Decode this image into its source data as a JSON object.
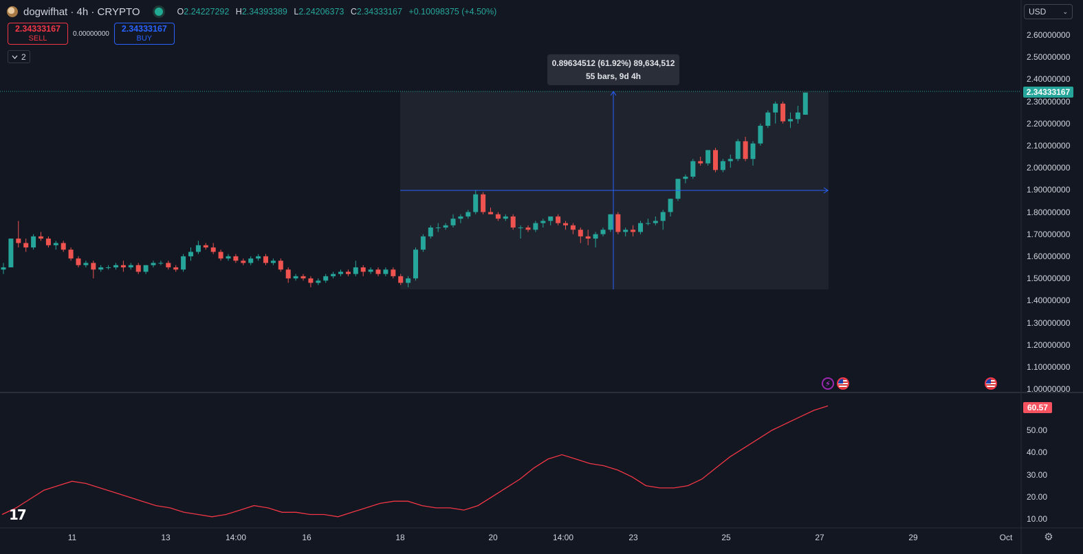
{
  "header": {
    "title": "dogwifhat · 4h · CRYPTO",
    "ohlc": {
      "open_label": "O",
      "open": "2.24227292",
      "high_label": "H",
      "high": "2.34393389",
      "low_label": "L",
      "low": "2.24206373",
      "close_label": "C",
      "close": "2.34333167",
      "change": "+0.10098375 (+4.50%)"
    }
  },
  "trade": {
    "sell_price": "2.34333167",
    "sell_label": "SELL",
    "spread": "0.00000000",
    "buy_price": "2.34333167",
    "buy_label": "BUY"
  },
  "indicators_collapse": {
    "count": "2"
  },
  "currency": {
    "selected": "USD"
  },
  "measure_tooltip": {
    "line1": "0.89634512 (61.92%) 89,634,512",
    "line2": "55 bars, 9d 4h"
  },
  "last_price_label": "2.34333167",
  "indicator_value_label": "60.57",
  "price_axis": [
    "2.60000000",
    "2.50000000",
    "2.40000000",
    "2.30000000",
    "2.20000000",
    "2.10000000",
    "2.00000000",
    "1.90000000",
    "1.80000000",
    "1.70000000",
    "1.60000000",
    "1.50000000",
    "1.40000000",
    "1.30000000",
    "1.20000000",
    "1.10000000",
    "1.00000000"
  ],
  "indicator_axis": [
    "50.00",
    "40.00",
    "30.00",
    "20.00",
    "10.00"
  ],
  "time_axis": [
    "11",
    "13",
    "14:00",
    "16",
    "18",
    "20",
    "14:00",
    "23",
    "25",
    "27",
    "29",
    "Oct"
  ],
  "events": [
    {
      "type": "flash-icon"
    },
    {
      "type": "us-flag-icon"
    },
    {
      "type": "us-flag-icon"
    }
  ],
  "colors": {
    "up": "#26a69a",
    "down": "#ef5350",
    "measure": "#2962ff",
    "indicator": "#f23645",
    "background": "#131722",
    "measure_fill": "#2a2e39"
  },
  "chart_data": {
    "type": "candlestick",
    "symbol": "dogwifhat",
    "interval": "4h",
    "ylim": [
      1.0,
      2.6
    ],
    "candles": [
      [
        1.54,
        1.57,
        1.52,
        1.55
      ],
      [
        1.55,
        1.68,
        1.55,
        1.68
      ],
      [
        1.68,
        1.76,
        1.64,
        1.66
      ],
      [
        1.66,
        1.68,
        1.62,
        1.64
      ],
      [
        1.64,
        1.7,
        1.63,
        1.69
      ],
      [
        1.69,
        1.71,
        1.67,
        1.68
      ],
      [
        1.68,
        1.69,
        1.64,
        1.65
      ],
      [
        1.65,
        1.67,
        1.63,
        1.66
      ],
      [
        1.66,
        1.67,
        1.62,
        1.63
      ],
      [
        1.63,
        1.64,
        1.58,
        1.59
      ],
      [
        1.59,
        1.6,
        1.55,
        1.56
      ],
      [
        1.56,
        1.58,
        1.55,
        1.57
      ],
      [
        1.57,
        1.58,
        1.5,
        1.54
      ],
      [
        1.54,
        1.56,
        1.53,
        1.55
      ],
      [
        1.55,
        1.56,
        1.54,
        1.55
      ],
      [
        1.55,
        1.57,
        1.54,
        1.56
      ],
      [
        1.56,
        1.58,
        1.53,
        1.55
      ],
      [
        1.55,
        1.57,
        1.54,
        1.56
      ],
      [
        1.56,
        1.57,
        1.52,
        1.53
      ],
      [
        1.53,
        1.56,
        1.52,
        1.56
      ],
      [
        1.56,
        1.58,
        1.55,
        1.57
      ],
      [
        1.57,
        1.58,
        1.56,
        1.57
      ],
      [
        1.57,
        1.58,
        1.54,
        1.55
      ],
      [
        1.55,
        1.56,
        1.53,
        1.54
      ],
      [
        1.54,
        1.61,
        1.53,
        1.6
      ],
      [
        1.6,
        1.64,
        1.58,
        1.62
      ],
      [
        1.62,
        1.67,
        1.61,
        1.65
      ],
      [
        1.65,
        1.66,
        1.63,
        1.64
      ],
      [
        1.64,
        1.66,
        1.61,
        1.62
      ],
      [
        1.62,
        1.63,
        1.58,
        1.59
      ],
      [
        1.59,
        1.61,
        1.58,
        1.6
      ],
      [
        1.6,
        1.61,
        1.57,
        1.58
      ],
      [
        1.58,
        1.59,
        1.56,
        1.57
      ],
      [
        1.57,
        1.6,
        1.56,
        1.59
      ],
      [
        1.59,
        1.61,
        1.58,
        1.6
      ],
      [
        1.6,
        1.61,
        1.56,
        1.57
      ],
      [
        1.57,
        1.59,
        1.56,
        1.58
      ],
      [
        1.58,
        1.59,
        1.53,
        1.54
      ],
      [
        1.54,
        1.55,
        1.48,
        1.5
      ],
      [
        1.5,
        1.52,
        1.49,
        1.51
      ],
      [
        1.51,
        1.52,
        1.49,
        1.5
      ],
      [
        1.5,
        1.51,
        1.46,
        1.48
      ],
      [
        1.48,
        1.5,
        1.47,
        1.49
      ],
      [
        1.49,
        1.52,
        1.48,
        1.51
      ],
      [
        1.51,
        1.53,
        1.5,
        1.52
      ],
      [
        1.52,
        1.54,
        1.51,
        1.53
      ],
      [
        1.53,
        1.54,
        1.51,
        1.52
      ],
      [
        1.52,
        1.58,
        1.51,
        1.55
      ],
      [
        1.55,
        1.56,
        1.51,
        1.53
      ],
      [
        1.53,
        1.55,
        1.52,
        1.54
      ],
      [
        1.54,
        1.55,
        1.51,
        1.52
      ],
      [
        1.52,
        1.55,
        1.51,
        1.54
      ],
      [
        1.54,
        1.55,
        1.5,
        1.51
      ],
      [
        1.51,
        1.52,
        1.47,
        1.48
      ],
      [
        1.48,
        1.51,
        1.46,
        1.5
      ],
      [
        1.5,
        1.64,
        1.49,
        1.63
      ],
      [
        1.63,
        1.7,
        1.62,
        1.69
      ],
      [
        1.69,
        1.74,
        1.68,
        1.73
      ],
      [
        1.73,
        1.75,
        1.71,
        1.73
      ],
      [
        1.73,
        1.75,
        1.72,
        1.74
      ],
      [
        1.74,
        1.79,
        1.73,
        1.77
      ],
      [
        1.77,
        1.79,
        1.75,
        1.78
      ],
      [
        1.78,
        1.81,
        1.77,
        1.8
      ],
      [
        1.8,
        1.9,
        1.79,
        1.88
      ],
      [
        1.88,
        1.89,
        1.79,
        1.8
      ],
      [
        1.8,
        1.82,
        1.79,
        1.79
      ],
      [
        1.79,
        1.8,
        1.76,
        1.77
      ],
      [
        1.77,
        1.79,
        1.76,
        1.78
      ],
      [
        1.78,
        1.79,
        1.72,
        1.73
      ],
      [
        1.73,
        1.74,
        1.68,
        1.73
      ],
      [
        1.73,
        1.74,
        1.71,
        1.72
      ],
      [
        1.72,
        1.76,
        1.71,
        1.75
      ],
      [
        1.75,
        1.77,
        1.73,
        1.76
      ],
      [
        1.76,
        1.78,
        1.74,
        1.78
      ],
      [
        1.78,
        1.79,
        1.74,
        1.75
      ],
      [
        1.75,
        1.76,
        1.72,
        1.74
      ],
      [
        1.74,
        1.75,
        1.7,
        1.72
      ],
      [
        1.72,
        1.73,
        1.66,
        1.69
      ],
      [
        1.69,
        1.72,
        1.65,
        1.68
      ],
      [
        1.68,
        1.71,
        1.64,
        1.7
      ],
      [
        1.7,
        1.73,
        1.69,
        1.72
      ],
      [
        1.72,
        1.79,
        1.71,
        1.79
      ],
      [
        1.79,
        1.8,
        1.7,
        1.71
      ],
      [
        1.71,
        1.73,
        1.69,
        1.72
      ],
      [
        1.72,
        1.74,
        1.69,
        1.71
      ],
      [
        1.71,
        1.76,
        1.7,
        1.75
      ],
      [
        1.75,
        1.77,
        1.74,
        1.75
      ],
      [
        1.75,
        1.78,
        1.74,
        1.76
      ],
      [
        1.76,
        1.81,
        1.72,
        1.8
      ],
      [
        1.8,
        1.86,
        1.78,
        1.86
      ],
      [
        1.86,
        1.95,
        1.85,
        1.95
      ],
      [
        1.95,
        1.97,
        1.93,
        1.96
      ],
      [
        1.96,
        2.04,
        1.95,
        2.03
      ],
      [
        2.03,
        2.05,
        2.01,
        2.02
      ],
      [
        2.02,
        2.08,
        2.01,
        2.08
      ],
      [
        2.08,
        2.09,
        1.98,
        1.99
      ],
      [
        1.99,
        2.04,
        1.98,
        2.03
      ],
      [
        2.03,
        2.06,
        2.0,
        2.04
      ],
      [
        2.04,
        2.13,
        2.03,
        2.12
      ],
      [
        2.12,
        2.14,
        2.03,
        2.04
      ],
      [
        2.04,
        2.12,
        2.01,
        2.11
      ],
      [
        2.11,
        2.2,
        2.1,
        2.19
      ],
      [
        2.19,
        2.26,
        2.18,
        2.25
      ],
      [
        2.25,
        2.3,
        2.2,
        2.29
      ],
      [
        2.29,
        2.3,
        2.2,
        2.21
      ],
      [
        2.21,
        2.25,
        2.18,
        2.22
      ],
      [
        2.22,
        2.28,
        2.2,
        2.25
      ],
      [
        2.24,
        2.34,
        2.24,
        2.34
      ]
    ],
    "indicator": {
      "values": [
        12,
        15,
        19,
        23,
        25,
        27,
        26,
        24,
        22,
        20,
        18,
        16,
        15,
        13,
        12,
        11,
        12,
        14,
        16,
        15,
        13,
        13,
        12,
        12,
        11,
        13,
        15,
        17,
        18,
        18,
        16,
        15,
        15,
        14,
        16,
        20,
        24,
        28,
        33,
        37,
        39,
        37,
        35,
        34,
        32,
        29,
        25,
        24,
        24,
        25,
        28,
        33,
        38,
        42,
        46,
        50,
        53,
        56,
        59,
        61
      ],
      "ylim": [
        5,
        65
      ]
    }
  }
}
